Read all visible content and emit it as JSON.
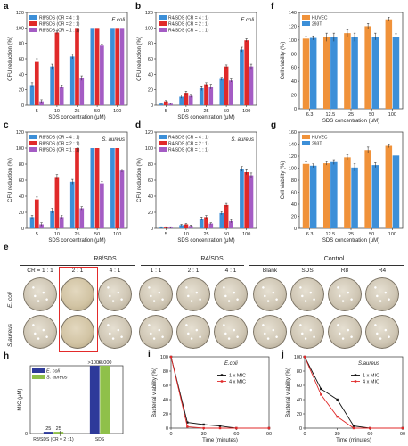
{
  "panels": {
    "a": {
      "label": "a"
    },
    "b": {
      "label": "b"
    },
    "c": {
      "label": "c"
    },
    "d": {
      "label": "d"
    },
    "e": {
      "label": "e"
    },
    "f": {
      "label": "f"
    },
    "g": {
      "label": "g"
    },
    "h": {
      "label": "h"
    },
    "i": {
      "label": "i"
    },
    "j": {
      "label": "j"
    }
  },
  "chart_data": [
    {
      "panel": "a",
      "type": "bar",
      "categories": [
        "5",
        "10",
        "25",
        "50",
        "100"
      ],
      "series": [
        {
          "name": "R8/SDS (CR = 4 : 1)",
          "color": "#3c8fd8",
          "values": [
            26,
            50,
            63,
            100,
            100
          ],
          "errors": [
            3,
            3,
            3,
            0,
            0
          ]
        },
        {
          "name": "R8/SDS (CR = 2 : 1)",
          "color": "#e02a2a",
          "values": [
            57,
            94,
            100,
            100,
            100
          ],
          "errors": [
            3,
            2,
            0,
            0,
            0
          ]
        },
        {
          "name": "R8/SDS (CR = 1 : 1)",
          "color": "#a45cc4",
          "values": [
            5,
            24,
            35,
            77,
            100
          ],
          "errors": [
            2,
            2,
            3,
            2,
            0
          ]
        }
      ],
      "annotation": "E.coli",
      "xlabel": "SDS concentration (μM)",
      "ylabel": "CFU reduction (%)",
      "ylim": [
        0,
        120
      ],
      "yticks": [
        "0",
        "20",
        "40",
        "60",
        "80",
        "100",
        "120"
      ]
    },
    {
      "panel": "b",
      "type": "bar",
      "categories": [
        "5",
        "10",
        "25",
        "50",
        "100"
      ],
      "series": [
        {
          "name": "R4/SDS (CR = 4 : 1)",
          "color": "#3c8fd8",
          "values": [
            2,
            11,
            22,
            34,
            72
          ],
          "errors": [
            1,
            2,
            3,
            2,
            3
          ]
        },
        {
          "name": "R4/SDS (CR = 2 : 1)",
          "color": "#e02a2a",
          "values": [
            5,
            16,
            27,
            50,
            84
          ],
          "errors": [
            1,
            2,
            2,
            2,
            2
          ]
        },
        {
          "name": "R4/SDS (CR = 1 : 1)",
          "color": "#a45cc4",
          "values": [
            2,
            12,
            24,
            32,
            50
          ],
          "errors": [
            1,
            2,
            3,
            2,
            3
          ]
        }
      ],
      "annotation": "E.coli",
      "xlabel": "SDS concentration (μM)",
      "ylabel": "CFU reduction (%)",
      "ylim": [
        0,
        120
      ],
      "yticks": [
        "0",
        "20",
        "40",
        "60",
        "80",
        "100",
        "120"
      ]
    },
    {
      "panel": "c",
      "type": "bar",
      "categories": [
        "5",
        "10",
        "25",
        "50",
        "100"
      ],
      "series": [
        {
          "name": "R8/SDS (CR = 4 : 1)",
          "color": "#3c8fd8",
          "values": [
            14,
            22,
            58,
            100,
            100
          ],
          "errors": [
            2,
            3,
            3,
            0,
            0
          ]
        },
        {
          "name": "R8/SDS (CR = 2 : 1)",
          "color": "#e02a2a",
          "values": [
            36,
            64,
            100,
            100,
            100
          ],
          "errors": [
            3,
            3,
            0,
            0,
            0
          ]
        },
        {
          "name": "R8/SDS (CR = 1 : 1)",
          "color": "#a45cc4",
          "values": [
            5,
            14,
            25,
            56,
            72
          ],
          "errors": [
            2,
            2,
            2,
            2,
            2
          ]
        }
      ],
      "annotation": "S. aureus",
      "xlabel": "SDS concentration (μM)",
      "ylabel": "CFU reduction (%)",
      "ylim": [
        0,
        120
      ],
      "yticks": [
        "0",
        "20",
        "40",
        "60",
        "80",
        "100",
        "120"
      ]
    },
    {
      "panel": "d",
      "type": "bar",
      "categories": [
        "5",
        "10",
        "25",
        "50",
        "100"
      ],
      "series": [
        {
          "name": "R4/SDS (CR = 4 : 1)",
          "color": "#3c8fd8",
          "values": [
            1,
            4,
            12,
            19,
            74
          ],
          "errors": [
            1,
            1,
            2,
            2,
            3
          ]
        },
        {
          "name": "R4/SDS (CR = 2 : 1)",
          "color": "#e02a2a",
          "values": [
            1,
            5,
            14,
            29,
            70
          ],
          "errors": [
            1,
            1,
            2,
            2,
            3
          ]
        },
        {
          "name": "R4/SDS (CR = 1 : 1)",
          "color": "#a45cc4",
          "values": [
            1,
            3,
            6,
            9,
            66
          ],
          "errors": [
            1,
            1,
            1,
            2,
            3
          ]
        }
      ],
      "annotation": "S. aureus",
      "xlabel": "SDS concentration (μM)",
      "ylabel": "CFU reduction (%)",
      "ylim": [
        0,
        120
      ],
      "yticks": [
        "0",
        "20",
        "40",
        "60",
        "80",
        "100",
        "120"
      ]
    },
    {
      "panel": "f",
      "type": "bar",
      "categories": [
        "6.3",
        "12.5",
        "25",
        "50",
        "100"
      ],
      "series": [
        {
          "name": "HUVEC",
          "color": "#f0923a",
          "values": [
            102,
            104,
            110,
            120,
            130
          ],
          "errors": [
            3,
            6,
            5,
            4,
            3
          ]
        },
        {
          "name": "293T",
          "color": "#3c8fd8",
          "values": [
            103,
            104,
            104,
            105,
            105
          ],
          "errors": [
            3,
            6,
            6,
            5,
            4
          ]
        }
      ],
      "xlabel": "SDS concentration (μM)",
      "ylabel": "Cell viability (%)",
      "ylim": [
        0,
        140
      ],
      "yticks": [
        "0",
        "20",
        "40",
        "60",
        "80",
        "100",
        "120",
        "140"
      ]
    },
    {
      "panel": "g",
      "type": "bar",
      "categories": [
        "6.3",
        "12.5",
        "25",
        "50",
        "100"
      ],
      "series": [
        {
          "name": "HUVEC",
          "color": "#f0923a",
          "values": [
            107,
            108,
            118,
            130,
            137
          ],
          "errors": [
            3,
            3,
            4,
            5,
            3
          ]
        },
        {
          "name": "293T",
          "color": "#3c8fd8",
          "values": [
            104,
            110,
            101,
            105,
            121
          ],
          "errors": [
            3,
            4,
            6,
            4,
            4
          ]
        }
      ],
      "xlabel": "SDS concentration (μM)",
      "ylabel": "Cell viability (%)",
      "ylim": [
        0,
        160
      ],
      "yticks": [
        "0",
        "20",
        "40",
        "60",
        "80",
        "100",
        "120",
        "140",
        "160"
      ]
    },
    {
      "panel": "h",
      "type": "bar",
      "categories": [
        "R8/SDS (CR = 2 : 1)",
        "SDS"
      ],
      "series": [
        {
          "name": "E. coli",
          "color": "#2e3a9a",
          "values": [
            25,
            1000
          ],
          "labels": [
            "25",
            ">1000"
          ]
        },
        {
          "name": "S. aureus",
          "color": "#8fc04a",
          "values": [
            25,
            1000
          ],
          "labels": [
            "25",
            ">1000"
          ]
        }
      ],
      "xlabel": "",
      "ylabel": "MIC (μM)",
      "ylim": [
        0,
        1000
      ],
      "yticks": [
        "0"
      ]
    },
    {
      "panel": "i",
      "type": "line",
      "x": [
        0,
        15,
        30,
        45,
        60,
        90
      ],
      "series": [
        {
          "name": "1 x MIC",
          "color": "#111111",
          "values": [
            100,
            8,
            5,
            3,
            0,
            0
          ]
        },
        {
          "name": "4 x MIC",
          "color": "#e02a2a",
          "values": [
            100,
            2,
            0,
            0,
            0,
            0
          ]
        }
      ],
      "annotation": "E.coli",
      "xlabel": "Time (minutes)",
      "ylabel": "Bacterial viability (%)",
      "xlim": [
        0,
        90
      ],
      "ylim": [
        0,
        100
      ],
      "xticks": [
        "0",
        "30",
        "60",
        "90"
      ],
      "yticks": [
        "0",
        "20",
        "40",
        "60",
        "80",
        "100"
      ]
    },
    {
      "panel": "j",
      "type": "line",
      "x": [
        0,
        15,
        30,
        45,
        60,
        90
      ],
      "series": [
        {
          "name": "1 x MIC",
          "color": "#111111",
          "values": [
            100,
            55,
            40,
            3,
            0,
            0
          ]
        },
        {
          "name": "4 x MIC",
          "color": "#e02a2a",
          "values": [
            100,
            47,
            16,
            0,
            0,
            0
          ]
        }
      ],
      "annotation": "S.aureus",
      "xlabel": "Time (minutes)",
      "ylabel": "Bacterial viability (%)",
      "xlim": [
        0,
        90
      ],
      "ylim": [
        0,
        100
      ],
      "xticks": [
        "0",
        "30",
        "60",
        "90"
      ],
      "yticks": [
        "0",
        "20",
        "40",
        "60",
        "80",
        "100"
      ]
    }
  ],
  "plates": {
    "groups": [
      "R8/SDS",
      "R4/SDS",
      "Control"
    ],
    "columns": [
      "CR = 1 : 1",
      "2 : 1",
      "4 : 1",
      "1 : 1",
      "2 : 1",
      "4 : 1",
      "Blank",
      "SDS",
      "R8",
      "R4"
    ],
    "rows": [
      "E. coli",
      "S.aureus"
    ]
  }
}
